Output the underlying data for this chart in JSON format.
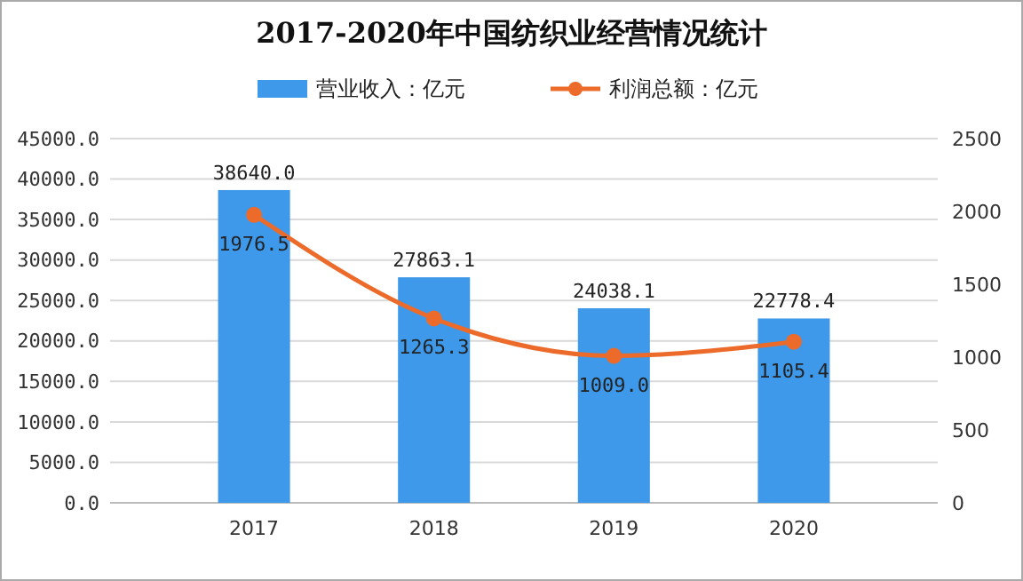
{
  "chart_data": {
    "type": "bar",
    "title": "2017-2020年中国纺织业经营情况统计",
    "categories": [
      "2017",
      "2018",
      "2019",
      "2020"
    ],
    "series": [
      {
        "name": "营业收入：亿元",
        "color": "#3e99ea",
        "values": [
          38640.0,
          27863.1,
          24038.1,
          22778.4
        ],
        "value_labels": [
          "38640.0",
          "27863.1",
          "24038.1",
          "22778.4"
        ]
      },
      {
        "name": "利润总额：亿元",
        "type": "line",
        "axis": "y2",
        "color": "#ed6b2a",
        "values": [
          1976.5,
          1265.3,
          1009.0,
          1105.4
        ],
        "value_labels": [
          "1976.5",
          "1265.3",
          "1009.0",
          "1105.4"
        ]
      }
    ],
    "ylim": [
      0,
      45000
    ],
    "yticks": [
      {
        "value": 0,
        "label": "0.0"
      },
      {
        "value": 5000,
        "label": "5000.0"
      },
      {
        "value": 10000,
        "label": "10000.0"
      },
      {
        "value": 15000,
        "label": "15000.0"
      },
      {
        "value": 20000,
        "label": "20000.0"
      },
      {
        "value": 25000,
        "label": "25000.0"
      },
      {
        "value": 30000,
        "label": "30000.0"
      },
      {
        "value": 35000,
        "label": "35000.0"
      },
      {
        "value": 40000,
        "label": "40000.0"
      },
      {
        "value": 45000,
        "label": "45000.0"
      }
    ],
    "y2lim": [
      0,
      2500
    ],
    "y2ticks": [
      0,
      500,
      1000,
      1500,
      2000,
      2500
    ],
    "grid": "y",
    "legend": "top",
    "marker": "circle",
    "line_style": "solid"
  }
}
